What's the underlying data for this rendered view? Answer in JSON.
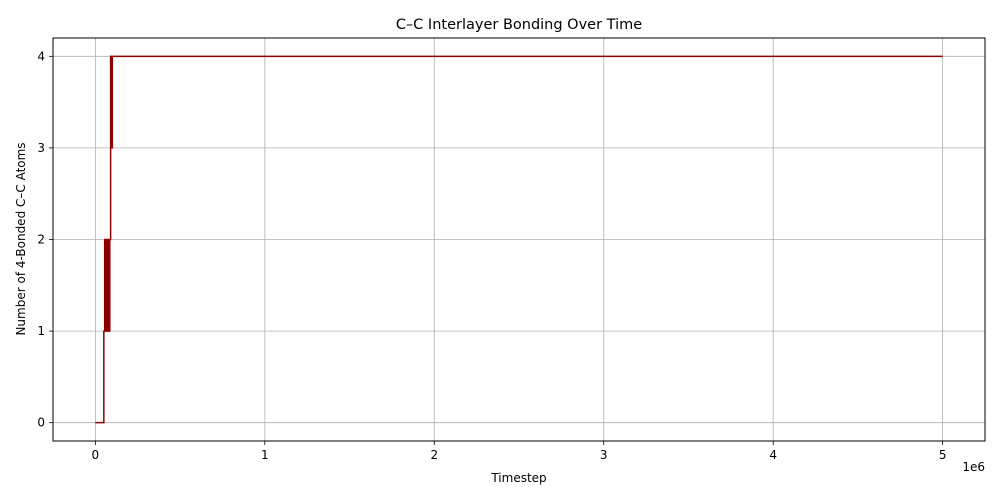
{
  "chart_data": {
    "type": "line",
    "title": "C–C Interlayer Bonding Over Time",
    "xlabel": "Timestep",
    "ylabel": "Number of 4-Bonded C–C Atoms",
    "x_offset_label": "1e6",
    "xlim": [
      -250000,
      5250000
    ],
    "ylim": [
      -0.2,
      4.2
    ],
    "xticks": [
      0,
      1000000,
      2000000,
      3000000,
      4000000,
      5000000
    ],
    "xtick_labels": [
      "0",
      "1",
      "2",
      "3",
      "4",
      "5"
    ],
    "yticks": [
      0,
      1,
      2,
      3,
      4
    ],
    "ytick_labels": [
      "0",
      "1",
      "2",
      "3",
      "4"
    ],
    "grid": true,
    "series": [
      {
        "color": "#8b0000",
        "x": [
          0,
          50000,
          50000,
          55000,
          55000,
          60000,
          60000,
          65000,
          65000,
          70000,
          70000,
          75000,
          75000,
          80000,
          80000,
          85000,
          85000,
          90000,
          90000,
          95000,
          95000,
          100000,
          100000,
          105000,
          105000,
          5000000
        ],
        "y": [
          0,
          0,
          1,
          1,
          2,
          2,
          1,
          1,
          2,
          2,
          1,
          1,
          2,
          2,
          1,
          1,
          2,
          2,
          4,
          4,
          3,
          3,
          4,
          4,
          4,
          4
        ]
      }
    ]
  }
}
